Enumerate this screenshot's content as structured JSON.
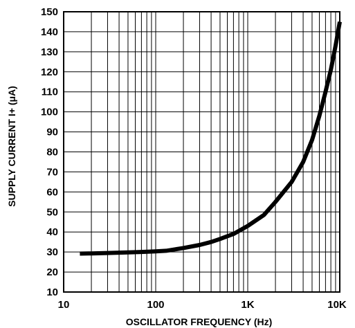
{
  "chart_data": {
    "type": "line",
    "xlabel": "OSCILLATOR FREQUENCY (Hz)",
    "ylabel": "SUPPLY CURRENT I+ (μA)",
    "xscale": "log",
    "xlim": [
      10,
      10000
    ],
    "ylim": [
      10,
      150
    ],
    "grid": true,
    "x_ticks": [
      {
        "value": 10,
        "label": "10"
      },
      {
        "value": 100,
        "label": "100"
      },
      {
        "value": 1000,
        "label": "1K"
      },
      {
        "value": 10000,
        "label": "10K"
      }
    ],
    "y_ticks": [
      10,
      20,
      30,
      40,
      50,
      60,
      70,
      80,
      90,
      100,
      110,
      120,
      130,
      140,
      150
    ],
    "series": [
      {
        "color": "#000000",
        "x": [
          15,
          20,
          30,
          50,
          70,
          100,
          130,
          200,
          300,
          400,
          500,
          700,
          1000,
          1500,
          2000,
          3000,
          4000,
          5000,
          6000,
          7000,
          8000,
          9000,
          10000
        ],
        "y": [
          29.2,
          29.3,
          29.5,
          29.8,
          30.0,
          30.3,
          30.6,
          32,
          33.5,
          35,
          36.5,
          39,
          43,
          48.5,
          55,
          65,
          75,
          86,
          98,
          110,
          121,
          133,
          145
        ]
      }
    ]
  }
}
